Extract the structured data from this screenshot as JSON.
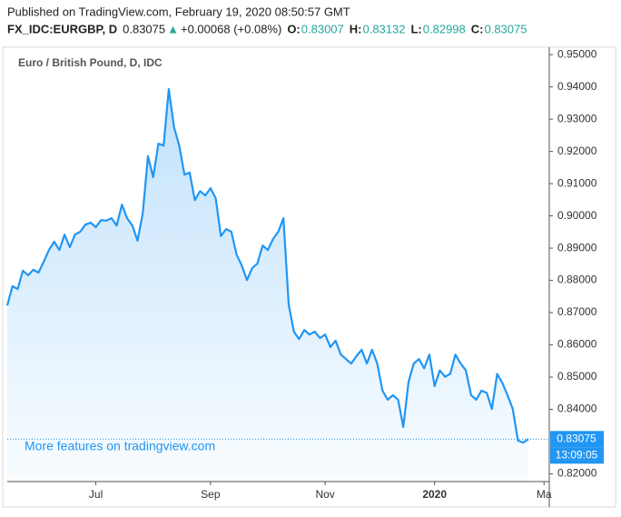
{
  "header": {
    "published": "Published on TradingView.com, February 19, 2020 08:50:57 GMT",
    "symbol": "FX_IDC:EURGBP, D",
    "price": "0.83075",
    "arrow": "▲",
    "change": "+0.00068 (+0.08%)",
    "open_label": "O:",
    "open": "0.83007",
    "high_label": "H:",
    "high": "0.83132",
    "low_label": "L:",
    "low": "0.82998",
    "close_label": "C:",
    "close": "0.83075"
  },
  "chart_data": {
    "type": "area",
    "title": "Euro / British Pound, D, IDC",
    "watermark": "More features on tradingview.com",
    "countdown": "13:09:05",
    "color": "#2196f3",
    "categories": [
      null,
      null,
      null,
      null,
      null,
      null,
      null,
      null,
      null,
      null,
      null,
      null,
      null,
      null,
      null,
      null,
      null,
      "Jul",
      null,
      null,
      null,
      null,
      null,
      null,
      null,
      null,
      null,
      null,
      null,
      null,
      null,
      null,
      null,
      null,
      null,
      null,
      null,
      null,
      null,
      "Sep",
      null,
      null,
      null,
      null,
      null,
      null,
      null,
      null,
      null,
      null,
      null,
      null,
      null,
      null,
      null,
      null,
      null,
      null,
      null,
      null,
      null,
      "Nov",
      null,
      null,
      null,
      null,
      null,
      null,
      null,
      null,
      null,
      null,
      null,
      null,
      null,
      null,
      null,
      null,
      null,
      null,
      null,
      null,
      "2020",
      null,
      null,
      null,
      null,
      null,
      null,
      null,
      null,
      null,
      null,
      null,
      null,
      null,
      null,
      null,
      null,
      null,
      null,
      null,
      null,
      "Ma"
    ],
    "values": [
      0.8722,
      0.8782,
      0.8773,
      0.883,
      0.8816,
      0.8833,
      0.8824,
      0.8858,
      0.8894,
      0.892,
      0.8894,
      0.8942,
      0.8903,
      0.8942,
      0.8951,
      0.8973,
      0.8979,
      0.8965,
      0.8987,
      0.8985,
      0.8993,
      0.897,
      0.9035,
      0.8993,
      0.897,
      0.8923,
      0.9007,
      0.9185,
      0.912,
      0.9224,
      0.9218,
      0.9393,
      0.9275,
      0.9218,
      0.9128,
      0.9134,
      0.9049,
      0.9077,
      0.9063,
      0.9086,
      0.9055,
      0.8937,
      0.8959,
      0.8951,
      0.888,
      0.8846,
      0.8801,
      0.8838,
      0.8852,
      0.8908,
      0.8894,
      0.8928,
      0.8951,
      0.8993,
      0.8725,
      0.8641,
      0.8618,
      0.8646,
      0.8632,
      0.8641,
      0.8621,
      0.8632,
      0.8593,
      0.8613,
      0.857,
      0.8556,
      0.8542,
      0.8565,
      0.8585,
      0.8542,
      0.8585,
      0.8542,
      0.8458,
      0.843,
      0.8444,
      0.843,
      0.8345,
      0.8485,
      0.8542,
      0.8556,
      0.8527,
      0.857,
      0.8472,
      0.8521,
      0.8501,
      0.851,
      0.857,
      0.8542,
      0.8521,
      0.8444,
      0.843,
      0.8458,
      0.8451,
      0.8401,
      0.851,
      0.8482,
      0.8444,
      0.8401,
      0.8303,
      0.8297,
      0.83075,
      null,
      null,
      null
    ],
    "ylim": [
      0.8176,
      0.9523
    ],
    "yticks": [
      {
        "value": 0.82,
        "label": "0.82000"
      },
      {
        "value": 0.84,
        "label": "0.84000"
      },
      {
        "value": 0.85,
        "label": "0.85000"
      },
      {
        "value": 0.86,
        "label": "0.86000"
      },
      {
        "value": 0.87,
        "label": "0.87000"
      },
      {
        "value": 0.88,
        "label": "0.88000"
      },
      {
        "value": 0.89,
        "label": "0.89000"
      },
      {
        "value": 0.9,
        "label": "0.90000"
      },
      {
        "value": 0.91,
        "label": "0.91000"
      },
      {
        "value": 0.92,
        "label": "0.92000"
      },
      {
        "value": 0.93,
        "label": "0.93000"
      },
      {
        "value": 0.94,
        "label": "0.94000"
      },
      {
        "value": 0.95,
        "label": "0.95000"
      }
    ],
    "grid": false
  }
}
